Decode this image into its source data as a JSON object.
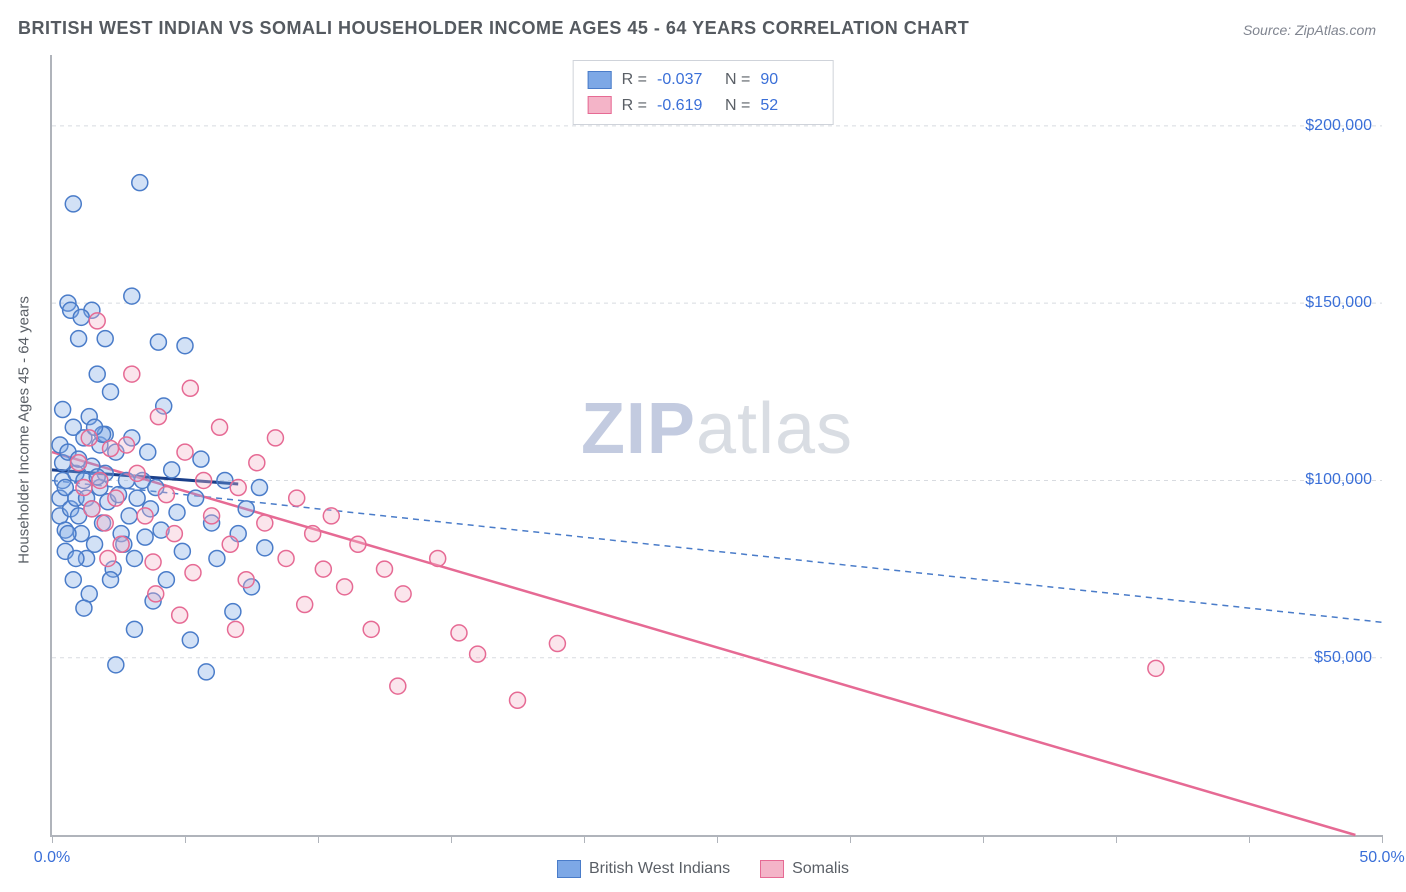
{
  "title": "BRITISH WEST INDIAN VS SOMALI HOUSEHOLDER INCOME AGES 45 - 64 YEARS CORRELATION CHART",
  "source": "Source: ZipAtlas.com",
  "watermark_part1": "ZIP",
  "watermark_part2": "atlas",
  "chart": {
    "type": "scatter",
    "background_color": "#ffffff",
    "grid_color": "#d8dbe0",
    "axis_color": "#b0b4bb",
    "text_color": "#5a5f66",
    "value_color": "#3a6fd8",
    "yaxis_label": "Householder Income Ages 45 - 64 years",
    "label_fontsize": 15,
    "title_fontsize": 18,
    "xlim": [
      0,
      50
    ],
    "ylim": [
      0,
      220000
    ],
    "xtick_positions": [
      0,
      5,
      10,
      15,
      20,
      25,
      30,
      35,
      40,
      45,
      50
    ],
    "xtick_labels": {
      "0": "0.0%",
      "50": "50.0%"
    },
    "ytick_positions": [
      50000,
      100000,
      150000,
      200000
    ],
    "ytick_labels": {
      "50000": "$50,000",
      "100000": "$100,000",
      "150000": "$150,000",
      "200000": "$200,000"
    },
    "marker_radius": 8,
    "marker_fill_opacity": 0.35,
    "marker_stroke_width": 1.5,
    "series": [
      {
        "name": "British West Indians",
        "color": "#7da8e6",
        "stroke": "#4a7cc9",
        "R": "-0.037",
        "N": "90",
        "trend": {
          "x1": 0,
          "y1": 100000,
          "x2": 50,
          "y2": 60000,
          "dash": "6,5",
          "width": 1.5
        },
        "trend_solid": {
          "x1": 0,
          "y1": 103000,
          "x2": 7,
          "y2": 99000,
          "width": 3
        },
        "points": [
          [
            0.3,
            110000
          ],
          [
            0.3,
            95000
          ],
          [
            0.3,
            90000
          ],
          [
            0.4,
            105000
          ],
          [
            0.4,
            100000
          ],
          [
            0.5,
            98000
          ],
          [
            0.5,
            86000
          ],
          [
            0.5,
            80000
          ],
          [
            0.6,
            150000
          ],
          [
            0.6,
            108000
          ],
          [
            0.7,
            148000
          ],
          [
            0.7,
            92000
          ],
          [
            0.8,
            178000
          ],
          [
            0.8,
            115000
          ],
          [
            0.9,
            102000
          ],
          [
            0.9,
            95000
          ],
          [
            1.0,
            140000
          ],
          [
            1.0,
            106000
          ],
          [
            1.0,
            90000
          ],
          [
            1.1,
            85000
          ],
          [
            1.2,
            112000
          ],
          [
            1.2,
            100000
          ],
          [
            1.3,
            78000
          ],
          [
            1.3,
            95000
          ],
          [
            1.4,
            118000
          ],
          [
            1.5,
            148000
          ],
          [
            1.5,
            104000
          ],
          [
            1.5,
            92000
          ],
          [
            1.6,
            82000
          ],
          [
            1.7,
            130000
          ],
          [
            1.8,
            110000
          ],
          [
            1.8,
            98000
          ],
          [
            1.9,
            88000
          ],
          [
            2.0,
            140000
          ],
          [
            2.0,
            102000
          ],
          [
            2.1,
            94000
          ],
          [
            2.2,
            125000
          ],
          [
            2.3,
            75000
          ],
          [
            2.4,
            108000
          ],
          [
            2.5,
            96000
          ],
          [
            2.6,
            85000
          ],
          [
            2.7,
            82000
          ],
          [
            2.8,
            100000
          ],
          [
            2.9,
            90000
          ],
          [
            3.0,
            152000
          ],
          [
            3.0,
            112000
          ],
          [
            3.1,
            78000
          ],
          [
            3.2,
            95000
          ],
          [
            3.3,
            184000
          ],
          [
            3.4,
            100000
          ],
          [
            3.5,
            84000
          ],
          [
            3.6,
            108000
          ],
          [
            3.7,
            92000
          ],
          [
            3.8,
            66000
          ],
          [
            3.9,
            98000
          ],
          [
            4.0,
            139000
          ],
          [
            4.1,
            86000
          ],
          [
            4.3,
            72000
          ],
          [
            4.5,
            103000
          ],
          [
            4.7,
            91000
          ],
          [
            4.9,
            80000
          ],
          [
            5.0,
            138000
          ],
          [
            5.2,
            55000
          ],
          [
            5.4,
            95000
          ],
          [
            5.6,
            106000
          ],
          [
            5.8,
            46000
          ],
          [
            6.0,
            88000
          ],
          [
            6.2,
            78000
          ],
          [
            6.5,
            100000
          ],
          [
            6.8,
            63000
          ],
          [
            7.0,
            85000
          ],
          [
            7.3,
            92000
          ],
          [
            7.5,
            70000
          ],
          [
            7.8,
            98000
          ],
          [
            8.0,
            81000
          ],
          [
            1.1,
            146000
          ],
          [
            2.0,
            113000
          ],
          [
            3.1,
            58000
          ],
          [
            1.4,
            68000
          ],
          [
            0.8,
            72000
          ],
          [
            1.9,
            113000
          ],
          [
            0.6,
            85000
          ],
          [
            0.4,
            120000
          ],
          [
            2.2,
            72000
          ],
          [
            1.6,
            115000
          ],
          [
            0.9,
            78000
          ],
          [
            1.2,
            64000
          ],
          [
            4.2,
            121000
          ],
          [
            2.4,
            48000
          ],
          [
            1.7,
            101000
          ]
        ]
      },
      {
        "name": "Somalis",
        "color": "#f4b4c8",
        "stroke": "#e66a94",
        "R": "-0.619",
        "N": "52",
        "trend": {
          "x1": 0,
          "y1": 108000,
          "x2": 49,
          "y2": 0,
          "dash": "none",
          "width": 2.5
        },
        "points": [
          [
            1.0,
            105000
          ],
          [
            1.2,
            98000
          ],
          [
            1.4,
            112000
          ],
          [
            1.5,
            92000
          ],
          [
            1.7,
            145000
          ],
          [
            1.8,
            100000
          ],
          [
            2.0,
            88000
          ],
          [
            2.2,
            109000
          ],
          [
            2.4,
            95000
          ],
          [
            2.6,
            82000
          ],
          [
            2.8,
            110000
          ],
          [
            3.0,
            130000
          ],
          [
            3.2,
            102000
          ],
          [
            3.5,
            90000
          ],
          [
            3.8,
            77000
          ],
          [
            4.0,
            118000
          ],
          [
            4.3,
            96000
          ],
          [
            4.6,
            85000
          ],
          [
            5.0,
            108000
          ],
          [
            5.3,
            74000
          ],
          [
            5.7,
            100000
          ],
          [
            6.0,
            90000
          ],
          [
            6.3,
            115000
          ],
          [
            6.7,
            82000
          ],
          [
            7.0,
            98000
          ],
          [
            7.3,
            72000
          ],
          [
            7.7,
            105000
          ],
          [
            8.0,
            88000
          ],
          [
            8.4,
            112000
          ],
          [
            8.8,
            78000
          ],
          [
            9.2,
            95000
          ],
          [
            9.5,
            65000
          ],
          [
            9.8,
            85000
          ],
          [
            10.2,
            75000
          ],
          [
            10.5,
            90000
          ],
          [
            11.0,
            70000
          ],
          [
            11.5,
            82000
          ],
          [
            12.0,
            58000
          ],
          [
            12.5,
            75000
          ],
          [
            13.0,
            42000
          ],
          [
            13.2,
            68000
          ],
          [
            14.5,
            78000
          ],
          [
            15.3,
            57000
          ],
          [
            16.0,
            51000
          ],
          [
            17.5,
            38000
          ],
          [
            19.0,
            54000
          ],
          [
            41.5,
            47000
          ],
          [
            3.9,
            68000
          ],
          [
            5.2,
            126000
          ],
          [
            2.1,
            78000
          ],
          [
            4.8,
            62000
          ],
          [
            6.9,
            58000
          ]
        ]
      }
    ]
  },
  "legend_top": {
    "r_label": "R =",
    "n_label": "N ="
  },
  "legend_bottom_labels": [
    "British West Indians",
    "Somalis"
  ]
}
